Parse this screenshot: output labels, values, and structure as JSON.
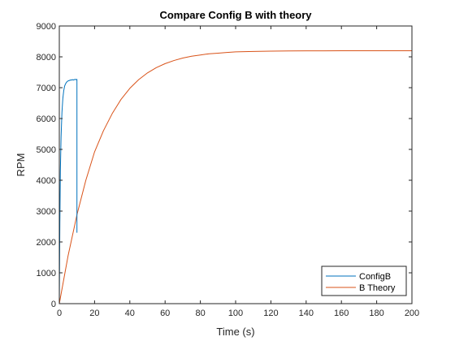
{
  "chart_data": {
    "type": "line",
    "title": "Compare Config B with theory",
    "xlabel": "Time (s)",
    "ylabel": "RPM",
    "xlim": [
      0,
      200
    ],
    "ylim": [
      0,
      9000
    ],
    "xticks": [
      0,
      20,
      40,
      60,
      80,
      100,
      120,
      140,
      160,
      180,
      200
    ],
    "yticks": [
      0,
      1000,
      2000,
      3000,
      4000,
      5000,
      6000,
      7000,
      8000,
      9000
    ],
    "grid": false,
    "legend_position": "bottom-right",
    "series": [
      {
        "name": "ConfigB",
        "color": "#0072BD",
        "x": [
          0,
          0.3,
          0.6,
          1.0,
          1.5,
          2.0,
          2.5,
          3.0,
          3.5,
          4.0,
          4.5,
          5.0,
          5.5,
          6.0,
          6.5,
          7.0,
          7.5,
          8.0,
          8.5,
          9.0,
          9.5,
          10.0,
          10.0,
          10.0
        ],
        "y": [
          0,
          2600,
          4300,
          5400,
          6200,
          6650,
          6900,
          7050,
          7120,
          7170,
          7200,
          7220,
          7230,
          7240,
          7250,
          7250,
          7260,
          7250,
          7260,
          7270,
          7260,
          7270,
          6800,
          2300
        ]
      },
      {
        "name": "B Theory",
        "color": "#D95319",
        "x": [
          0,
          5,
          10,
          15,
          20,
          25,
          30,
          35,
          40,
          45,
          50,
          55,
          60,
          65,
          70,
          75,
          80,
          85,
          90,
          95,
          100,
          110,
          120,
          130,
          140,
          150,
          160,
          170,
          180,
          190,
          200
        ],
        "y": [
          0,
          1560,
          2880,
          3990,
          4920,
          5600,
          6160,
          6620,
          6980,
          7260,
          7480,
          7650,
          7780,
          7880,
          7960,
          8020,
          8060,
          8100,
          8120,
          8140,
          8160,
          8175,
          8185,
          8190,
          8193,
          8195,
          8196,
          8197,
          8198,
          8198,
          8198
        ]
      }
    ]
  }
}
